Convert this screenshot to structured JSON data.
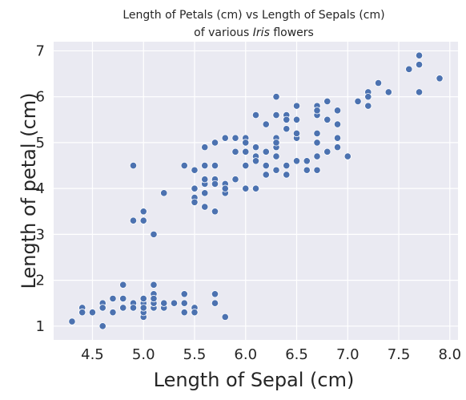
{
  "chart_data": {
    "type": "scatter",
    "title_line1": "Length of Petals (cm) vs Length of Sepals (cm)",
    "title_line2_prefix": "of various ",
    "title_line2_italic": "Iris",
    "title_line2_suffix": " flowers",
    "xlabel": "Length of Sepal (cm)",
    "ylabel": "Length of petal (cm)",
    "xlim": [
      4.12,
      8.08
    ],
    "ylim": [
      0.7,
      7.2
    ],
    "xticks": [
      4.5,
      5.0,
      5.5,
      6.0,
      6.5,
      7.0,
      7.5,
      8.0
    ],
    "xtick_labels": [
      "4.5",
      "5.0",
      "5.5",
      "6.0",
      "6.5",
      "7.0",
      "7.5",
      "8.0"
    ],
    "yticks": [
      1,
      2,
      3,
      4,
      5,
      6,
      7
    ],
    "ytick_labels": [
      "1",
      "2",
      "3",
      "4",
      "5",
      "6",
      "7"
    ],
    "grid": true,
    "background": "#eaeaf2",
    "marker_color": "#4c72b0",
    "points": [
      {
        "x": 5.1,
        "y": 1.4
      },
      {
        "x": 4.9,
        "y": 1.4
      },
      {
        "x": 4.7,
        "y": 1.3
      },
      {
        "x": 4.6,
        "y": 1.5
      },
      {
        "x": 5.0,
        "y": 1.4
      },
      {
        "x": 5.4,
        "y": 1.7
      },
      {
        "x": 4.6,
        "y": 1.4
      },
      {
        "x": 5.0,
        "y": 1.5
      },
      {
        "x": 4.4,
        "y": 1.4
      },
      {
        "x": 4.9,
        "y": 1.5
      },
      {
        "x": 5.4,
        "y": 1.5
      },
      {
        "x": 4.8,
        "y": 1.6
      },
      {
        "x": 4.8,
        "y": 1.4
      },
      {
        "x": 4.3,
        "y": 1.1
      },
      {
        "x": 5.8,
        "y": 1.2
      },
      {
        "x": 5.7,
        "y": 1.5
      },
      {
        "x": 5.4,
        "y": 1.3
      },
      {
        "x": 5.1,
        "y": 1.4
      },
      {
        "x": 5.7,
        "y": 1.7
      },
      {
        "x": 5.1,
        "y": 1.5
      },
      {
        "x": 5.4,
        "y": 1.7
      },
      {
        "x": 5.1,
        "y": 1.5
      },
      {
        "x": 4.6,
        "y": 1.0
      },
      {
        "x": 5.1,
        "y": 1.7
      },
      {
        "x": 4.8,
        "y": 1.9
      },
      {
        "x": 5.0,
        "y": 1.6
      },
      {
        "x": 5.0,
        "y": 1.6
      },
      {
        "x": 5.2,
        "y": 1.5
      },
      {
        "x": 5.2,
        "y": 1.4
      },
      {
        "x": 4.7,
        "y": 1.6
      },
      {
        "x": 4.8,
        "y": 1.6
      },
      {
        "x": 5.4,
        "y": 1.5
      },
      {
        "x": 5.2,
        "y": 1.5
      },
      {
        "x": 5.5,
        "y": 1.4
      },
      {
        "x": 4.9,
        "y": 1.5
      },
      {
        "x": 5.0,
        "y": 1.2
      },
      {
        "x": 5.5,
        "y": 1.3
      },
      {
        "x": 4.9,
        "y": 1.4
      },
      {
        "x": 4.4,
        "y": 1.3
      },
      {
        "x": 5.1,
        "y": 1.5
      },
      {
        "x": 5.0,
        "y": 1.3
      },
      {
        "x": 4.5,
        "y": 1.3
      },
      {
        "x": 4.4,
        "y": 1.3
      },
      {
        "x": 5.0,
        "y": 1.6
      },
      {
        "x": 5.1,
        "y": 1.9
      },
      {
        "x": 4.8,
        "y": 1.4
      },
      {
        "x": 5.1,
        "y": 1.6
      },
      {
        "x": 4.6,
        "y": 1.4
      },
      {
        "x": 5.3,
        "y": 1.5
      },
      {
        "x": 5.0,
        "y": 1.4
      },
      {
        "x": 7.0,
        "y": 4.7
      },
      {
        "x": 6.4,
        "y": 4.5
      },
      {
        "x": 6.9,
        "y": 4.9
      },
      {
        "x": 5.5,
        "y": 4.0
      },
      {
        "x": 6.5,
        "y": 4.6
      },
      {
        "x": 5.7,
        "y": 4.5
      },
      {
        "x": 6.3,
        "y": 4.7
      },
      {
        "x": 4.9,
        "y": 3.3
      },
      {
        "x": 6.6,
        "y": 4.6
      },
      {
        "x": 5.2,
        "y": 3.9
      },
      {
        "x": 5.0,
        "y": 3.5
      },
      {
        "x": 5.9,
        "y": 4.2
      },
      {
        "x": 6.0,
        "y": 4.0
      },
      {
        "x": 6.1,
        "y": 4.7
      },
      {
        "x": 5.6,
        "y": 3.6
      },
      {
        "x": 6.7,
        "y": 4.4
      },
      {
        "x": 5.6,
        "y": 4.5
      },
      {
        "x": 5.8,
        "y": 4.1
      },
      {
        "x": 6.2,
        "y": 4.5
      },
      {
        "x": 5.6,
        "y": 3.9
      },
      {
        "x": 5.9,
        "y": 4.8
      },
      {
        "x": 6.1,
        "y": 4.0
      },
      {
        "x": 6.3,
        "y": 4.9
      },
      {
        "x": 6.1,
        "y": 4.7
      },
      {
        "x": 6.4,
        "y": 4.3
      },
      {
        "x": 6.6,
        "y": 4.4
      },
      {
        "x": 6.8,
        "y": 4.8
      },
      {
        "x": 6.7,
        "y": 5.0
      },
      {
        "x": 6.0,
        "y": 4.5
      },
      {
        "x": 5.7,
        "y": 3.5
      },
      {
        "x": 5.5,
        "y": 3.8
      },
      {
        "x": 5.5,
        "y": 3.7
      },
      {
        "x": 5.8,
        "y": 3.9
      },
      {
        "x": 6.0,
        "y": 5.1
      },
      {
        "x": 5.4,
        "y": 4.5
      },
      {
        "x": 6.0,
        "y": 4.5
      },
      {
        "x": 6.7,
        "y": 4.7
      },
      {
        "x": 6.3,
        "y": 4.4
      },
      {
        "x": 5.6,
        "y": 4.1
      },
      {
        "x": 5.5,
        "y": 4.0
      },
      {
        "x": 5.5,
        "y": 4.4
      },
      {
        "x": 6.1,
        "y": 4.6
      },
      {
        "x": 5.8,
        "y": 4.0
      },
      {
        "x": 5.0,
        "y": 3.3
      },
      {
        "x": 5.6,
        "y": 4.2
      },
      {
        "x": 5.7,
        "y": 4.2
      },
      {
        "x": 5.7,
        "y": 4.2
      },
      {
        "x": 6.2,
        "y": 4.3
      },
      {
        "x": 5.1,
        "y": 3.0
      },
      {
        "x": 5.7,
        "y": 4.1
      },
      {
        "x": 6.3,
        "y": 6.0
      },
      {
        "x": 5.8,
        "y": 5.1
      },
      {
        "x": 7.1,
        "y": 5.9
      },
      {
        "x": 6.3,
        "y": 5.6
      },
      {
        "x": 6.5,
        "y": 5.8
      },
      {
        "x": 7.6,
        "y": 6.6
      },
      {
        "x": 4.9,
        "y": 4.5
      },
      {
        "x": 7.3,
        "y": 6.3
      },
      {
        "x": 6.7,
        "y": 5.8
      },
      {
        "x": 7.2,
        "y": 6.1
      },
      {
        "x": 6.5,
        "y": 5.1
      },
      {
        "x": 6.4,
        "y": 5.3
      },
      {
        "x": 6.8,
        "y": 5.5
      },
      {
        "x": 5.7,
        "y": 5.0
      },
      {
        "x": 5.8,
        "y": 5.1
      },
      {
        "x": 6.4,
        "y": 5.3
      },
      {
        "x": 6.5,
        "y": 5.5
      },
      {
        "x": 7.7,
        "y": 6.7
      },
      {
        "x": 7.7,
        "y": 6.9
      },
      {
        "x": 6.0,
        "y": 5.0
      },
      {
        "x": 6.9,
        "y": 5.7
      },
      {
        "x": 5.6,
        "y": 4.9
      },
      {
        "x": 7.7,
        "y": 6.7
      },
      {
        "x": 6.3,
        "y": 4.9
      },
      {
        "x": 6.7,
        "y": 5.7
      },
      {
        "x": 7.2,
        "y": 6.0
      },
      {
        "x": 6.2,
        "y": 4.8
      },
      {
        "x": 6.1,
        "y": 4.9
      },
      {
        "x": 6.4,
        "y": 5.6
      },
      {
        "x": 7.2,
        "y": 5.8
      },
      {
        "x": 7.4,
        "y": 6.1
      },
      {
        "x": 7.9,
        "y": 6.4
      },
      {
        "x": 6.4,
        "y": 5.6
      },
      {
        "x": 6.3,
        "y": 5.1
      },
      {
        "x": 6.1,
        "y": 5.6
      },
      {
        "x": 7.7,
        "y": 6.1
      },
      {
        "x": 6.3,
        "y": 5.6
      },
      {
        "x": 6.4,
        "y": 5.5
      },
      {
        "x": 6.0,
        "y": 4.8
      },
      {
        "x": 6.9,
        "y": 5.4
      },
      {
        "x": 6.7,
        "y": 5.6
      },
      {
        "x": 6.9,
        "y": 5.1
      },
      {
        "x": 5.8,
        "y": 5.1
      },
      {
        "x": 6.8,
        "y": 5.9
      },
      {
        "x": 6.7,
        "y": 5.7
      },
      {
        "x": 6.7,
        "y": 5.2
      },
      {
        "x": 6.3,
        "y": 5.0
      },
      {
        "x": 6.5,
        "y": 5.2
      },
      {
        "x": 6.2,
        "y": 5.4
      },
      {
        "x": 5.9,
        "y": 5.1
      }
    ]
  }
}
